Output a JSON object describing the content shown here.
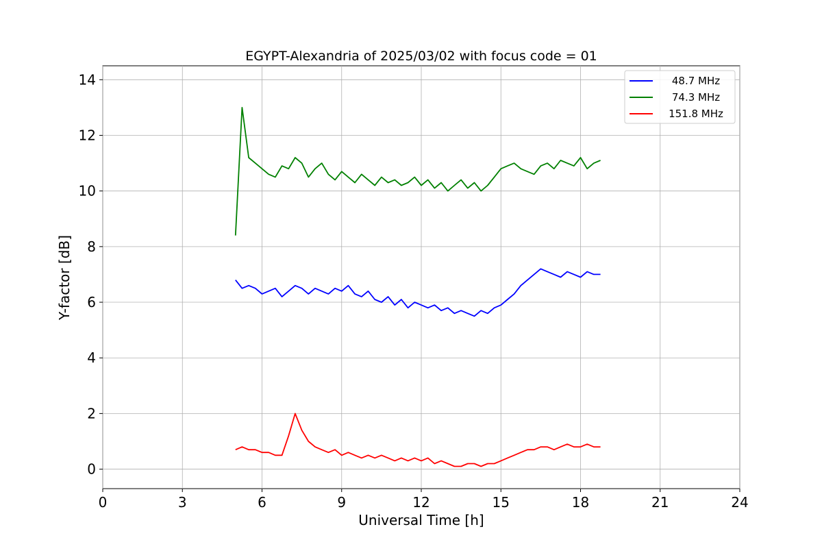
{
  "chart_data": {
    "type": "line",
    "title": "EGYPT-Alexandria of 2025/03/02 with focus code = 01",
    "xlabel": "Universal Time [h]",
    "ylabel": "Y-factor [dB]",
    "xlim": [
      0,
      24
    ],
    "ylim": [
      -0.7,
      14.5
    ],
    "xticks": [
      0,
      3,
      6,
      9,
      12,
      15,
      18,
      21,
      24
    ],
    "yticks": [
      0,
      2,
      4,
      6,
      8,
      10,
      12,
      14
    ],
    "grid": true,
    "legend_position": "top-right",
    "series": [
      {
        "name": "48.7 MHz",
        "color": "#0000ff",
        "x": [
          5.0,
          5.25,
          5.5,
          5.75,
          6.0,
          6.25,
          6.5,
          6.75,
          7.0,
          7.25,
          7.5,
          7.75,
          8.0,
          8.25,
          8.5,
          8.75,
          9.0,
          9.25,
          9.5,
          9.75,
          10.0,
          10.25,
          10.5,
          10.75,
          11.0,
          11.25,
          11.5,
          11.75,
          12.0,
          12.25,
          12.5,
          12.75,
          13.0,
          13.25,
          13.5,
          13.75,
          14.0,
          14.25,
          14.5,
          14.75,
          15.0,
          15.25,
          15.5,
          15.75,
          16.0,
          16.25,
          16.5,
          16.75,
          17.0,
          17.25,
          17.5,
          17.75,
          18.0,
          18.25,
          18.5,
          18.75
        ],
        "y": [
          6.8,
          6.5,
          6.6,
          6.5,
          6.3,
          6.4,
          6.5,
          6.2,
          6.4,
          6.6,
          6.5,
          6.3,
          6.5,
          6.4,
          6.3,
          6.5,
          6.4,
          6.6,
          6.3,
          6.2,
          6.4,
          6.1,
          6.0,
          6.2,
          5.9,
          6.1,
          5.8,
          6.0,
          5.9,
          5.8,
          5.9,
          5.7,
          5.8,
          5.6,
          5.7,
          5.6,
          5.5,
          5.7,
          5.6,
          5.8,
          5.9,
          6.1,
          6.3,
          6.6,
          6.8,
          7.0,
          7.2,
          7.1,
          7.0,
          6.9,
          7.1,
          7.0,
          6.9,
          7.1,
          7.0,
          7.0
        ]
      },
      {
        "name": "74.3 MHz",
        "color": "#008000",
        "x": [
          5.0,
          5.25,
          5.5,
          5.75,
          6.0,
          6.25,
          6.5,
          6.75,
          7.0,
          7.25,
          7.5,
          7.75,
          8.0,
          8.25,
          8.5,
          8.75,
          9.0,
          9.25,
          9.5,
          9.75,
          10.0,
          10.25,
          10.5,
          10.75,
          11.0,
          11.25,
          11.5,
          11.75,
          12.0,
          12.25,
          12.5,
          12.75,
          13.0,
          13.25,
          13.5,
          13.75,
          14.0,
          14.25,
          14.5,
          14.75,
          15.0,
          15.25,
          15.5,
          15.75,
          16.0,
          16.25,
          16.5,
          16.75,
          17.0,
          17.25,
          17.5,
          17.75,
          18.0,
          18.25,
          18.5,
          18.75
        ],
        "y": [
          8.4,
          13.0,
          11.2,
          11.0,
          10.8,
          10.6,
          10.5,
          10.9,
          10.8,
          11.2,
          11.0,
          10.5,
          10.8,
          11.0,
          10.6,
          10.4,
          10.7,
          10.5,
          10.3,
          10.6,
          10.4,
          10.2,
          10.5,
          10.3,
          10.4,
          10.2,
          10.3,
          10.5,
          10.2,
          10.4,
          10.1,
          10.3,
          10.0,
          10.2,
          10.4,
          10.1,
          10.3,
          10.0,
          10.2,
          10.5,
          10.8,
          10.9,
          11.0,
          10.8,
          10.7,
          10.6,
          10.9,
          11.0,
          10.8,
          11.1,
          11.0,
          10.9,
          11.2,
          10.8,
          11.0,
          11.1
        ]
      },
      {
        "name": "151.8 MHz",
        "color": "#ff0000",
        "x": [
          5.0,
          5.25,
          5.5,
          5.75,
          6.0,
          6.25,
          6.5,
          6.75,
          7.0,
          7.25,
          7.5,
          7.75,
          8.0,
          8.25,
          8.5,
          8.75,
          9.0,
          9.25,
          9.5,
          9.75,
          10.0,
          10.25,
          10.5,
          10.75,
          11.0,
          11.25,
          11.5,
          11.75,
          12.0,
          12.25,
          12.5,
          12.75,
          13.0,
          13.25,
          13.5,
          13.75,
          14.0,
          14.25,
          14.5,
          14.75,
          15.0,
          15.25,
          15.5,
          15.75,
          16.0,
          16.25,
          16.5,
          16.75,
          17.0,
          17.25,
          17.5,
          17.75,
          18.0,
          18.25,
          18.5,
          18.75
        ],
        "y": [
          0.7,
          0.8,
          0.7,
          0.7,
          0.6,
          0.6,
          0.5,
          0.5,
          1.2,
          2.0,
          1.4,
          1.0,
          0.8,
          0.7,
          0.6,
          0.7,
          0.5,
          0.6,
          0.5,
          0.4,
          0.5,
          0.4,
          0.5,
          0.4,
          0.3,
          0.4,
          0.3,
          0.4,
          0.3,
          0.4,
          0.2,
          0.3,
          0.2,
          0.1,
          0.1,
          0.2,
          0.2,
          0.1,
          0.2,
          0.2,
          0.3,
          0.4,
          0.5,
          0.6,
          0.7,
          0.7,
          0.8,
          0.8,
          0.7,
          0.8,
          0.9,
          0.8,
          0.8,
          0.9,
          0.8,
          0.8
        ]
      }
    ]
  }
}
